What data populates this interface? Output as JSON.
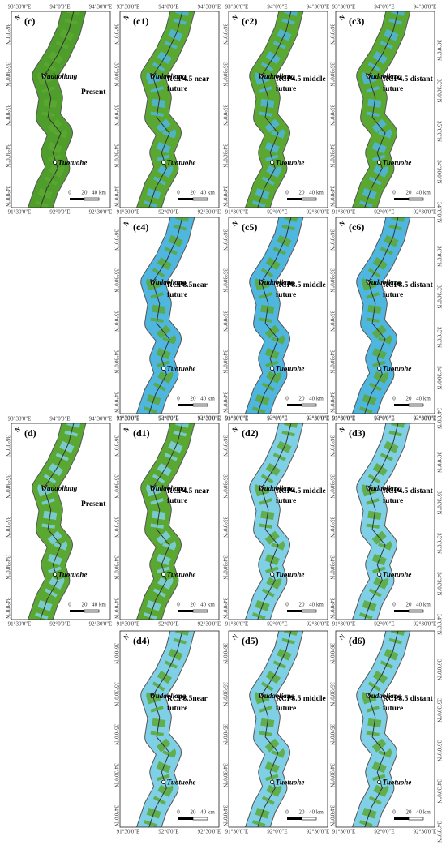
{
  "figure": {
    "lon_top": [
      "93°30'0\"E",
      "94°0'0\"E",
      "94°30'0\"E"
    ],
    "lon_bottom": [
      "91°30'0\"E",
      "92°0'0\"E",
      "92°30'0\"E"
    ],
    "lat": [
      "36°0'0\"N",
      "35°30'0\"N",
      "35°0'0\"N",
      "34°30'0\"N",
      "34°0'0\"N"
    ],
    "places": [
      "Wudaoliang",
      "Tuotuohe"
    ],
    "scale_bar": [
      "0",
      "20",
      "40 km"
    ],
    "north": "N",
    "panels": [
      {
        "label": "(c)",
        "scenario": [
          "Present"
        ],
        "colors": [
          "#4f9e2c",
          "#5aa832"
        ]
      },
      {
        "label": "(c1)",
        "scenario": [
          "RCP4.5 near",
          "future"
        ],
        "colors": [
          "#5aa832",
          "#4fb6e0"
        ]
      },
      {
        "label": "(c2)",
        "scenario": [
          "RCP4.5 middle",
          "future"
        ],
        "colors": [
          "#5aa832",
          "#4fb6e0"
        ]
      },
      {
        "label": "(c3)",
        "scenario": [
          "RCP4.5 distant",
          "future"
        ],
        "colors": [
          "#5aa832",
          "#4fb6e0"
        ]
      },
      {
        "label": "(c4)",
        "scenario": [
          "RCP8.5near",
          "future"
        ],
        "colors": [
          "#4fb6e0",
          "#5aa832"
        ]
      },
      {
        "label": "(c5)",
        "scenario": [
          "RCP8.5 middle",
          "future"
        ],
        "colors": [
          "#4fb6e0",
          "#5aa832"
        ]
      },
      {
        "label": "(c6)",
        "scenario": [
          "RCP8.5 distant",
          "future"
        ],
        "colors": [
          "#4fb6e0",
          "#5aa832"
        ]
      },
      {
        "label": "(d)",
        "scenario": [
          "Present"
        ],
        "colors": [
          "#5aa832",
          "#7fd0e6"
        ]
      },
      {
        "label": "(d1)",
        "scenario": [
          "RCP4.5 near",
          "future"
        ],
        "colors": [
          "#5aa832",
          "#7fd0e6"
        ]
      },
      {
        "label": "(d2)",
        "scenario": [
          "RCP4.5 middle",
          "future"
        ],
        "colors": [
          "#7fd0e6",
          "#5aa832"
        ]
      },
      {
        "label": "(d3)",
        "scenario": [
          "RCP4.5 distant",
          "future"
        ],
        "colors": [
          "#7fd0e6",
          "#5aa832"
        ]
      },
      {
        "label": "(d4)",
        "scenario": [
          "RCP8.5near",
          "future"
        ],
        "colors": [
          "#7fd0e6",
          "#5aa832"
        ]
      },
      {
        "label": "(d5)",
        "scenario": [
          "RCP8.5 middle",
          "future"
        ],
        "colors": [
          "#7fd0e6",
          "#5aa832"
        ]
      },
      {
        "label": "(d6)",
        "scenario": [
          "RCP8.5 distant",
          "future"
        ],
        "colors": [
          "#7fd0e6",
          "#5aa832"
        ]
      }
    ]
  }
}
